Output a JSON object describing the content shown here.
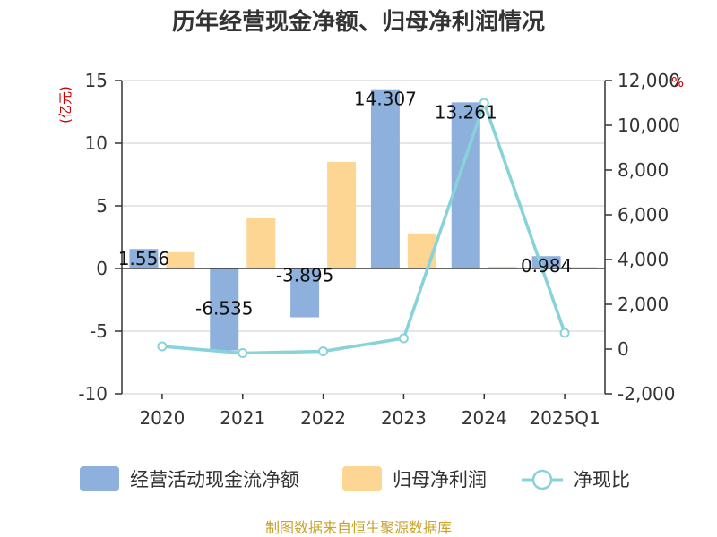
{
  "chart_data": {
    "type": "bar",
    "title": "历年经营现金净额、归母净利润情况",
    "categories": [
      "2020",
      "2021",
      "2022",
      "2023",
      "2024",
      "2025Q1"
    ],
    "left_axis": {
      "unit": "(亿元)",
      "ylim": [
        -10,
        15
      ],
      "ticks": [
        15,
        10,
        5,
        0,
        -5,
        -10
      ]
    },
    "right_axis": {
      "unit": "%",
      "ylim": [
        -2000,
        12000
      ],
      "ticks": [
        "12,000",
        "10,000",
        "8,000",
        "6,000",
        "4,000",
        "2,000",
        "0",
        "-2,000"
      ],
      "tick_values": [
        12000,
        10000,
        8000,
        6000,
        4000,
        2000,
        0,
        -2000
      ]
    },
    "series": [
      {
        "name": "经营活动现金流净额",
        "kind": "bar",
        "axis": "left",
        "color": "#8eb0dc",
        "values": [
          1.556,
          -6.535,
          -3.895,
          14.307,
          13.261,
          0.984
        ],
        "labels": [
          "1.556",
          "-6.535",
          "-3.895",
          "14.307",
          "13.261",
          "0.984"
        ]
      },
      {
        "name": "归母净利润",
        "kind": "bar",
        "axis": "left",
        "color": "#fdd693",
        "values": [
          1.3,
          4.0,
          8.5,
          2.8,
          0.15,
          0.12
        ]
      },
      {
        "name": "净现比",
        "kind": "line",
        "axis": "right",
        "color": "#88d3d9",
        "values": [
          120,
          -180,
          -100,
          480,
          11000,
          720
        ]
      }
    ],
    "legend_position": "bottom",
    "source": "制图数据来自恒生聚源数据库"
  }
}
